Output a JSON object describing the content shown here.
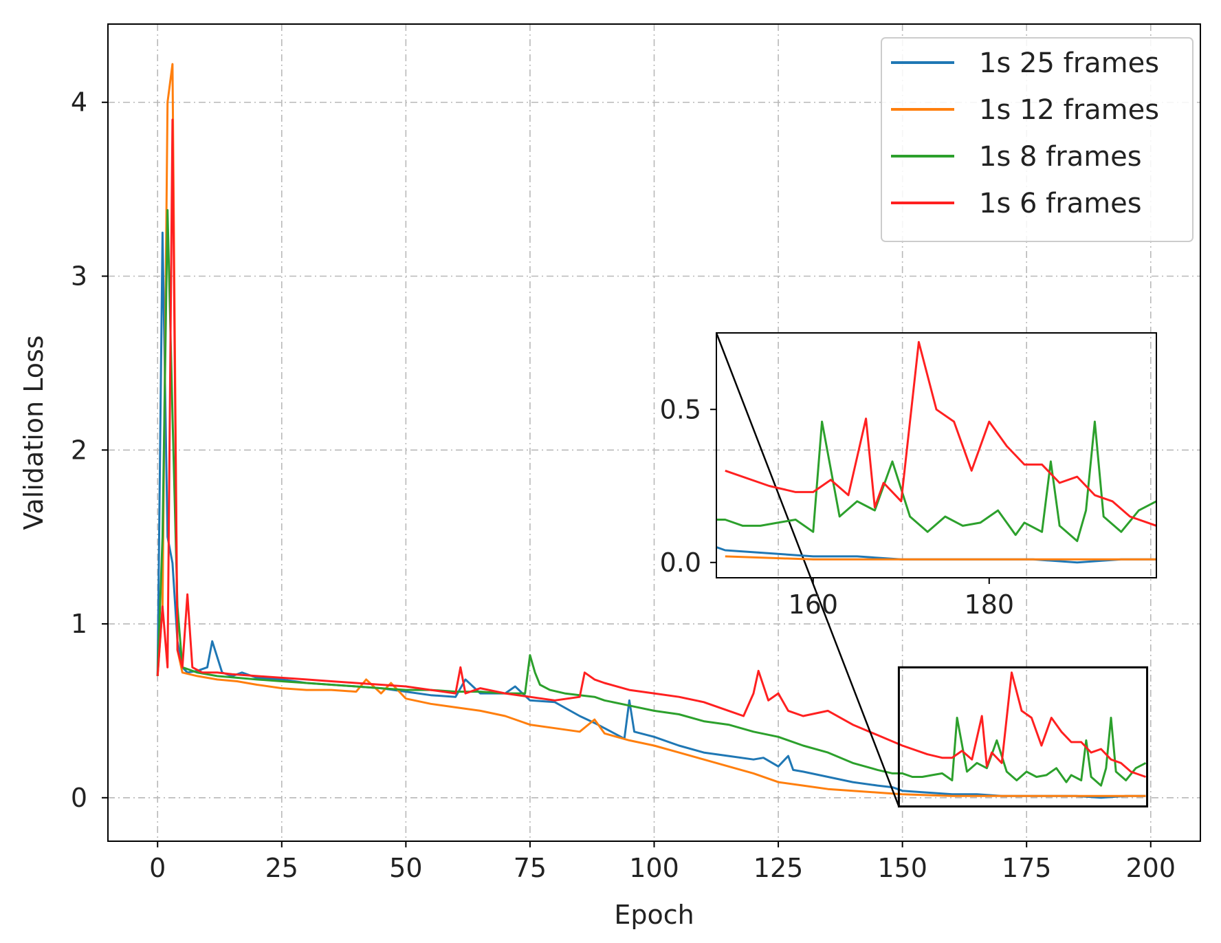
{
  "chart_data": [
    {
      "type": "line",
      "xlabel": "Epoch",
      "ylabel": "Validation Loss",
      "xlim": [
        -10,
        210
      ],
      "ylim": [
        -0.25,
        4.45
      ],
      "xticks": [
        0,
        25,
        50,
        75,
        100,
        125,
        150,
        175,
        200
      ],
      "yticks": [
        0,
        1,
        2,
        3,
        4
      ],
      "grid": true,
      "legend_position": "top-right",
      "series": [
        {
          "name": "1s 25 frames",
          "color": "#1f77b4",
          "x": [
            0,
            1,
            2,
            3,
            4,
            5,
            6,
            8,
            10,
            11,
            13,
            15,
            17,
            20,
            25,
            30,
            35,
            40,
            45,
            50,
            55,
            60,
            62,
            65,
            70,
            72,
            75,
            80,
            85,
            88,
            90,
            92,
            94,
            95,
            96,
            100,
            105,
            110,
            115,
            120,
            122,
            125,
            127,
            128,
            130,
            135,
            140,
            145,
            148,
            150,
            155,
            160,
            165,
            170,
            175,
            180,
            185,
            190,
            195,
            199
          ],
          "y": [
            0.7,
            3.25,
            1.5,
            1.35,
            0.9,
            0.75,
            0.72,
            0.73,
            0.75,
            0.9,
            0.72,
            0.7,
            0.72,
            0.69,
            0.68,
            0.66,
            0.65,
            0.64,
            0.63,
            0.61,
            0.59,
            0.58,
            0.68,
            0.6,
            0.6,
            0.64,
            0.56,
            0.55,
            0.47,
            0.43,
            0.4,
            0.37,
            0.34,
            0.56,
            0.38,
            0.35,
            0.3,
            0.26,
            0.24,
            0.22,
            0.23,
            0.18,
            0.24,
            0.16,
            0.15,
            0.12,
            0.09,
            0.07,
            0.06,
            0.04,
            0.03,
            0.02,
            0.02,
            0.01,
            0.01,
            0.01,
            0.01,
            0.0,
            0.01,
            0.01
          ]
        },
        {
          "name": "1s 12 frames",
          "color": "#ff7f0e",
          "x": [
            0,
            1,
            2,
            3,
            4,
            5,
            8,
            12,
            16,
            20,
            25,
            30,
            35,
            40,
            42,
            45,
            47,
            50,
            55,
            60,
            65,
            70,
            75,
            80,
            85,
            88,
            90,
            95,
            100,
            105,
            110,
            115,
            120,
            125,
            130,
            135,
            140,
            145,
            150,
            160,
            170,
            180,
            190,
            199
          ],
          "y": [
            0.7,
            1.1,
            4.0,
            4.22,
            0.85,
            0.72,
            0.7,
            0.68,
            0.67,
            0.65,
            0.63,
            0.62,
            0.62,
            0.61,
            0.68,
            0.6,
            0.66,
            0.57,
            0.54,
            0.52,
            0.5,
            0.47,
            0.42,
            0.4,
            0.38,
            0.45,
            0.37,
            0.33,
            0.3,
            0.26,
            0.22,
            0.18,
            0.14,
            0.09,
            0.07,
            0.05,
            0.04,
            0.03,
            0.02,
            0.01,
            0.01,
            0.01,
            0.01,
            0.01
          ]
        },
        {
          "name": "1s 8 frames",
          "color": "#2ca02c",
          "x": [
            0,
            1,
            2,
            3,
            4,
            5,
            8,
            12,
            16,
            20,
            25,
            30,
            35,
            40,
            45,
            50,
            55,
            60,
            65,
            70,
            74,
            75,
            76,
            77,
            79,
            82,
            85,
            88,
            90,
            95,
            100,
            105,
            110,
            115,
            120,
            125,
            130,
            135,
            140,
            145,
            148,
            150,
            152,
            154,
            156,
            158,
            160,
            161,
            163,
            165,
            167,
            169,
            171,
            173,
            175,
            177,
            179,
            181,
            183,
            184,
            186,
            187,
            188,
            190,
            191,
            192,
            193,
            195,
            197,
            199
          ],
          "y": [
            0.7,
            1.5,
            3.38,
            2.2,
            1.1,
            0.75,
            0.72,
            0.7,
            0.69,
            0.68,
            0.67,
            0.66,
            0.65,
            0.64,
            0.63,
            0.62,
            0.62,
            0.61,
            0.61,
            0.6,
            0.6,
            0.82,
            0.72,
            0.65,
            0.62,
            0.6,
            0.59,
            0.58,
            0.56,
            0.53,
            0.5,
            0.48,
            0.44,
            0.42,
            0.38,
            0.35,
            0.3,
            0.26,
            0.2,
            0.16,
            0.14,
            0.14,
            0.12,
            0.12,
            0.13,
            0.14,
            0.1,
            0.46,
            0.15,
            0.2,
            0.17,
            0.33,
            0.15,
            0.1,
            0.15,
            0.12,
            0.13,
            0.17,
            0.09,
            0.13,
            0.1,
            0.33,
            0.12,
            0.07,
            0.17,
            0.46,
            0.15,
            0.1,
            0.17,
            0.2
          ]
        },
        {
          "name": "1s 6 frames",
          "color": "#ff2020",
          "x": [
            0,
            1,
            2,
            3,
            4,
            5,
            6,
            7,
            9,
            12,
            15,
            20,
            25,
            30,
            35,
            40,
            45,
            50,
            55,
            60,
            61,
            62,
            65,
            70,
            75,
            80,
            85,
            86,
            88,
            90,
            95,
            100,
            105,
            110,
            115,
            118,
            120,
            121,
            123,
            125,
            127,
            130,
            135,
            140,
            145,
            150,
            155,
            158,
            160,
            162,
            164,
            166,
            167,
            168,
            170,
            172,
            174,
            176,
            178,
            180,
            182,
            184,
            186,
            188,
            190,
            192,
            194,
            196,
            199
          ],
          "y": [
            0.7,
            1.1,
            0.75,
            3.9,
            0.85,
            0.75,
            1.17,
            0.75,
            0.72,
            0.72,
            0.71,
            0.7,
            0.69,
            0.68,
            0.67,
            0.66,
            0.65,
            0.64,
            0.62,
            0.6,
            0.75,
            0.6,
            0.63,
            0.6,
            0.58,
            0.56,
            0.58,
            0.72,
            0.68,
            0.66,
            0.62,
            0.6,
            0.58,
            0.55,
            0.5,
            0.47,
            0.6,
            0.73,
            0.56,
            0.6,
            0.5,
            0.47,
            0.5,
            0.42,
            0.36,
            0.3,
            0.25,
            0.23,
            0.23,
            0.27,
            0.22,
            0.47,
            0.18,
            0.26,
            0.2,
            0.72,
            0.5,
            0.46,
            0.3,
            0.46,
            0.38,
            0.32,
            0.32,
            0.26,
            0.28,
            0.22,
            0.2,
            0.15,
            0.12
          ]
        }
      ]
    },
    {
      "type": "line",
      "role": "inset",
      "xlim": [
        149,
        199
      ],
      "ylim": [
        -0.05,
        0.75
      ],
      "xticks": [
        160,
        180
      ],
      "yticks": [
        0.0,
        0.5
      ],
      "series_from": "main"
    }
  ]
}
